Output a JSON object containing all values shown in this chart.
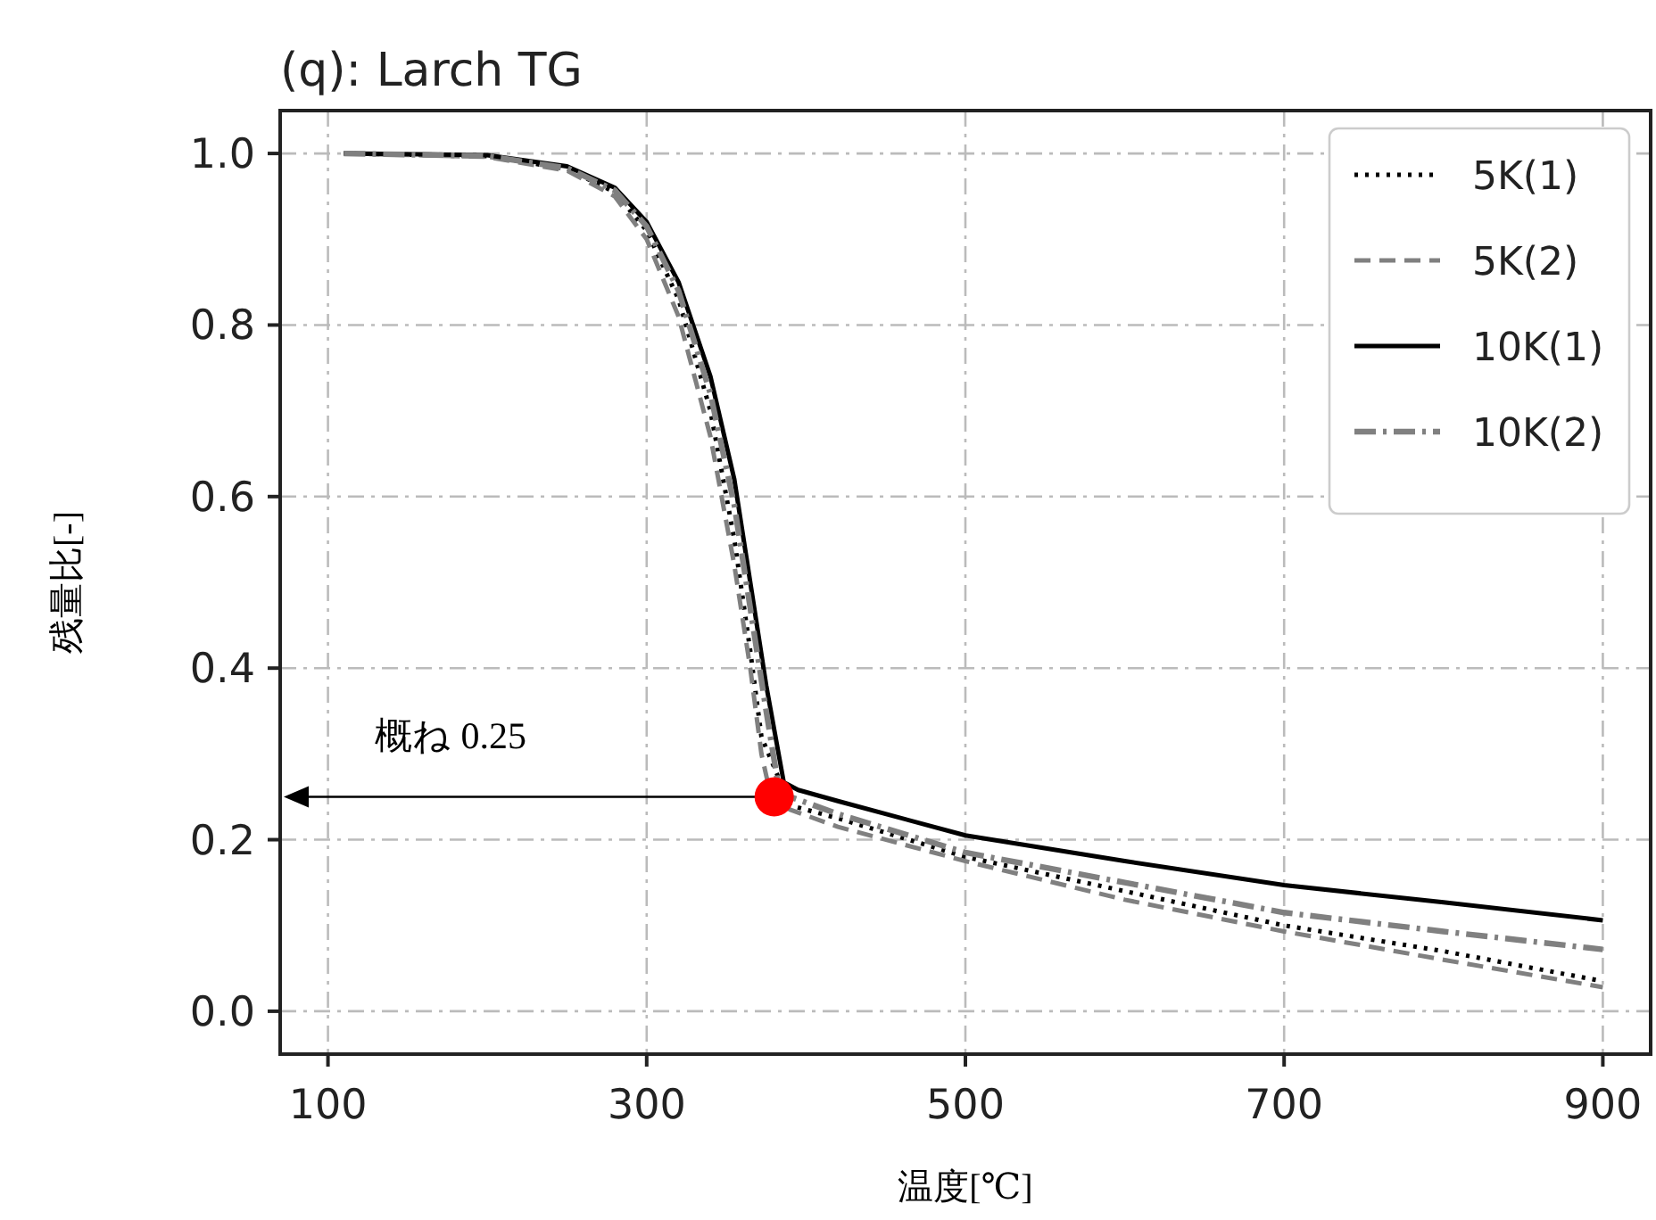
{
  "chart_data": {
    "type": "line",
    "title": "(q): Larch TG",
    "xlabel": "温度[℃]",
    "ylabel": "残量比[-]",
    "xlim": [
      70,
      930
    ],
    "ylim": [
      -0.05,
      1.05
    ],
    "xticks": [
      100,
      300,
      500,
      700,
      900
    ],
    "yticks": [
      {
        "value": 0,
        "label": "0.0"
      },
      0.2,
      0.4,
      0.6,
      0.8,
      {
        "value": 1,
        "label": "1.0"
      }
    ],
    "grid": true,
    "legend": "top right",
    "series": [
      {
        "name": "5K(1)",
        "color": "#000000",
        "line_style": "dotted",
        "x": [
          110,
          200,
          250,
          280,
          300,
          320,
          340,
          355,
          365,
          372,
          390,
          420,
          500,
          600,
          700,
          800,
          900
        ],
        "values": [
          1.0,
          0.997,
          0.982,
          0.955,
          0.91,
          0.83,
          0.7,
          0.55,
          0.42,
          0.32,
          0.24,
          0.225,
          0.18,
          0.14,
          0.1,
          0.07,
          0.035
        ]
      },
      {
        "name": "5K(2)",
        "color": "#808080",
        "line_style": "dashed",
        "x": [
          110,
          200,
          250,
          280,
          300,
          320,
          340,
          355,
          365,
          372,
          378,
          390,
          420,
          500,
          600,
          700,
          800,
          900
        ],
        "values": [
          1.0,
          0.996,
          0.98,
          0.95,
          0.9,
          0.81,
          0.67,
          0.52,
          0.4,
          0.3,
          0.25,
          0.235,
          0.215,
          0.175,
          0.13,
          0.093,
          0.06,
          0.028
        ]
      },
      {
        "name": "10K(1)",
        "color": "#000000",
        "line_style": "solid",
        "x": [
          110,
          200,
          250,
          280,
          300,
          320,
          340,
          355,
          365,
          375,
          386,
          395,
          420,
          500,
          600,
          700,
          800,
          900
        ],
        "values": [
          1.0,
          0.998,
          0.985,
          0.96,
          0.92,
          0.85,
          0.74,
          0.62,
          0.5,
          0.38,
          0.267,
          0.258,
          0.245,
          0.205,
          0.175,
          0.147,
          0.127,
          0.106
        ]
      },
      {
        "name": "10K(2)",
        "color": "#808080",
        "line_style": "dashdot",
        "x": [
          110,
          200,
          250,
          280,
          300,
          320,
          340,
          355,
          365,
          375,
          382,
          390,
          420,
          500,
          600,
          700,
          800,
          900
        ],
        "values": [
          1.0,
          0.997,
          0.983,
          0.957,
          0.915,
          0.84,
          0.72,
          0.59,
          0.47,
          0.35,
          0.27,
          0.25,
          0.23,
          0.185,
          0.15,
          0.115,
          0.093,
          0.072
        ]
      },
      {
        "type": "scatter",
        "color": "#ff0000",
        "x": [
          380
        ],
        "values": [
          0.25
        ]
      }
    ],
    "annotations": [
      "概ね 0.25"
    ]
  }
}
